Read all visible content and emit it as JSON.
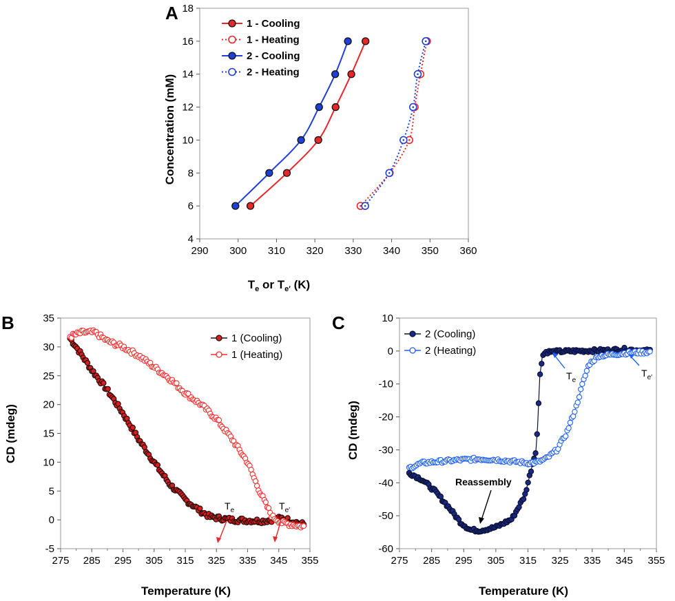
{
  "chart_data": [
    {
      "panel": "A",
      "type": "line",
      "xlabel": "T",
      "xlabel_parts": {
        "t1": "T",
        "s1": "e",
        "mid": " or T",
        "s2": "e′",
        "end": " (K)"
      },
      "ylabel": "Concentration (mM)",
      "xlim": [
        290,
        360
      ],
      "ylim": [
        4,
        18
      ],
      "xticks": [
        290,
        300,
        310,
        320,
        330,
        340,
        350,
        360
      ],
      "yticks": [
        4,
        6,
        8,
        10,
        12,
        14,
        16,
        18
      ],
      "legend_position": "top-left",
      "series": [
        {
          "name": "1 - Cooling",
          "color": "#e8272a",
          "style": "solid",
          "marker": "filled",
          "points": [
            [
              303.2,
              6
            ],
            [
              312.7,
              8
            ],
            [
              320.9,
              10
            ],
            [
              325.4,
              12
            ],
            [
              329.5,
              14
            ],
            [
              333.2,
              16
            ]
          ]
        },
        {
          "name": "1 - Heating",
          "color": "#e8272a",
          "style": "dotted",
          "marker": "open",
          "points": [
            [
              331.9,
              6
            ],
            [
              339.5,
              8
            ],
            [
              344.6,
              10
            ],
            [
              346.0,
              12
            ],
            [
              347.5,
              14
            ],
            [
              349.2,
              16
            ]
          ]
        },
        {
          "name": "2 - Cooling",
          "color": "#1f3fd6",
          "style": "solid",
          "marker": "filled",
          "points": [
            [
              299.3,
              6
            ],
            [
              308.1,
              8
            ],
            [
              316.4,
              10
            ],
            [
              321.1,
              12
            ],
            [
              325.3,
              14
            ],
            [
              328.6,
              16
            ]
          ]
        },
        {
          "name": "2 - Heating",
          "color": "#1f3fd6",
          "style": "dotted",
          "marker": "open",
          "points": [
            [
              333.1,
              6
            ],
            [
              339.4,
              8
            ],
            [
              343.1,
              10
            ],
            [
              345.6,
              12
            ],
            [
              346.8,
              14
            ],
            [
              348.9,
              16
            ]
          ]
        }
      ]
    },
    {
      "panel": "B",
      "type": "scatter",
      "xlabel": "Temperature (K)",
      "ylabel": "CD (mdeg)",
      "xlim": [
        275,
        355
      ],
      "ylim": [
        -5,
        35
      ],
      "xticks": [
        275,
        285,
        295,
        305,
        315,
        325,
        335,
        345,
        355
      ],
      "yticks": [
        -5,
        0,
        5,
        10,
        15,
        20,
        25,
        30,
        35
      ],
      "legend_position": "top-right",
      "series": [
        {
          "name": "1 (Cooling)",
          "color": "#2b0a0a",
          "fill": "#d42020",
          "style": "solid",
          "marker": "filled",
          "curve": [
            [
              278,
              31.5
            ],
            [
              280,
              30
            ],
            [
              285,
              26
            ],
            [
              290,
              22.5
            ],
            [
              295,
              18.5
            ],
            [
              300,
              14
            ],
            [
              305,
              10
            ],
            [
              310,
              6.2
            ],
            [
              315,
              3.5
            ],
            [
              320,
              1.5
            ],
            [
              323,
              0.5
            ],
            [
              330,
              0
            ],
            [
              340,
              -0.2
            ],
            [
              346,
              0.3
            ],
            [
              353,
              -0.8
            ]
          ]
        },
        {
          "name": "1 (Heating)",
          "color": "#ff2a2a",
          "fill": "#ffffff",
          "style": "solid",
          "marker": "open",
          "curve": [
            [
              278,
              31.8
            ],
            [
              282,
              32.5
            ],
            [
              286,
              32.5
            ],
            [
              290,
              31
            ],
            [
              295,
              30
            ],
            [
              300,
              28.5
            ],
            [
              305,
              26.5
            ],
            [
              310,
              24.5
            ],
            [
              315,
              22
            ],
            [
              320,
              20
            ],
            [
              325,
              17.5
            ],
            [
              330,
              14
            ],
            [
              335,
              10
            ],
            [
              338,
              6
            ],
            [
              341,
              2.5
            ],
            [
              343,
              0.5
            ],
            [
              346,
              -0.5
            ],
            [
              353,
              -1.2
            ]
          ]
        }
      ],
      "annotations": [
        {
          "text": "T",
          "sub": "e",
          "x": 325,
          "y": 0.5
        },
        {
          "text": "T",
          "sub": "e′",
          "x": 342,
          "y": 0.3
        }
      ]
    },
    {
      "panel": "C",
      "type": "scatter",
      "xlabel": "Temperature (K)",
      "ylabel": "CD (mdeg)",
      "xlim": [
        275,
        355
      ],
      "ylim": [
        -60,
        10
      ],
      "xticks": [
        275,
        285,
        295,
        305,
        315,
        325,
        335,
        345,
        355
      ],
      "yticks": [
        -60,
        -50,
        -40,
        -30,
        -20,
        -10,
        0,
        10
      ],
      "legend_position": "top-left",
      "series": [
        {
          "name": "2 (Cooling)",
          "color": "#0a1033",
          "fill": "#1a2a80",
          "style": "solid",
          "marker": "filled",
          "curve": [
            [
              278,
              -37
            ],
            [
              282,
              -39
            ],
            [
              286,
              -42.5
            ],
            [
              290,
              -47
            ],
            [
              294,
              -52
            ],
            [
              297,
              -54.3
            ],
            [
              300,
              -54.5
            ],
            [
              305,
              -53.5
            ],
            [
              310,
              -51
            ],
            [
              314,
              -44
            ],
            [
              316,
              -36
            ],
            [
              317.5,
              -30
            ],
            [
              318,
              -23
            ],
            [
              318.7,
              -7.5
            ],
            [
              319.5,
              -1.5
            ],
            [
              320.5,
              -0.3
            ],
            [
              330,
              0
            ],
            [
              340,
              0.2
            ],
            [
              345,
              0.5
            ],
            [
              353,
              0
            ]
          ]
        },
        {
          "name": "2 (Heating)",
          "color": "#1f5fff",
          "fill": "#ffffff",
          "style": "solid",
          "marker": "open",
          "curve": [
            [
              278,
              -35.5
            ],
            [
              282,
              -34
            ],
            [
              288,
              -33.5
            ],
            [
              295,
              -33
            ],
            [
              300,
              -32.8
            ],
            [
              305,
              -33
            ],
            [
              310,
              -33.5
            ],
            [
              315,
              -34
            ],
            [
              318,
              -33.8
            ],
            [
              321,
              -32.5
            ],
            [
              324,
              -30
            ],
            [
              327,
              -25
            ],
            [
              330,
              -17
            ],
            [
              332,
              -10
            ],
            [
              334,
              -4
            ],
            [
              337,
              -1.5
            ],
            [
              342,
              -1
            ],
            [
              347,
              -0.5
            ],
            [
              353,
              -0.3
            ]
          ]
        }
      ],
      "annotations": [
        {
          "text": "T",
          "sub": "e",
          "x": 319.5,
          "y": -1.5
        },
        {
          "text": "T",
          "sub": "e′",
          "x": 345,
          "y": -0.8
        },
        {
          "text": "Reassembly",
          "x": 297,
          "y": -54.5
        }
      ]
    }
  ]
}
